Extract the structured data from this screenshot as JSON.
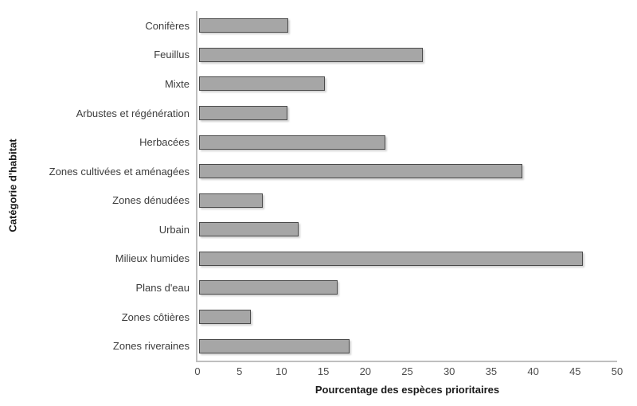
{
  "chart_data": {
    "type": "bar",
    "orientation": "horizontal",
    "title": "",
    "xlabel": "Pourcentage des espèces prioritaires",
    "ylabel": "Catégorie d'habitat",
    "xlim": [
      0,
      50
    ],
    "xticks": [
      0,
      5,
      10,
      15,
      20,
      25,
      30,
      35,
      40,
      45,
      50
    ],
    "grid": false,
    "legend": "none",
    "bar_color": "#a6a6a6",
    "bar_border_color": "#4a4a4a",
    "axis_line_color": "#bfbfbf",
    "categories": [
      "Conifères",
      "Feuillus",
      "Mixte",
      "Arbustes et régénération",
      "Herbacées",
      "Zones cultivées et aménagées",
      "Zones dénudées",
      "Urbain",
      "Milieux humides",
      "Plans d'eau",
      "Zones côtières",
      "Zones riveraines"
    ],
    "values": [
      10.4,
      26.5,
      14.8,
      10.3,
      22.0,
      38.3,
      7.4,
      11.7,
      45.5,
      16.3,
      6.0,
      17.7
    ]
  }
}
